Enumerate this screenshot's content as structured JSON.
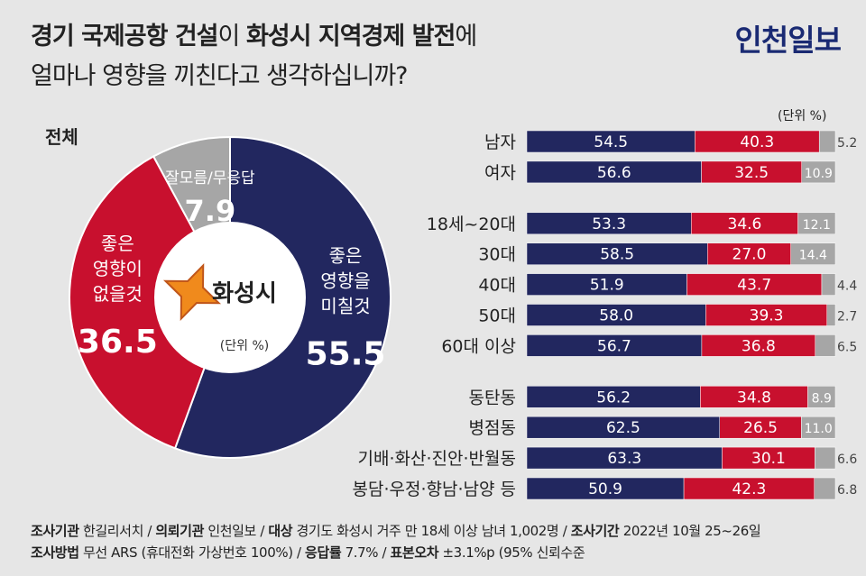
{
  "header": {
    "title_parts": [
      "경기 국제공항 건설",
      "이 ",
      "화성시 지역경제 발전",
      "에"
    ],
    "subtitle": "얼마나 영향을 끼친다고 생각하십니까?",
    "logo": "인천일보"
  },
  "unit_label": "(단위 %)",
  "pie": {
    "title": "전체",
    "center_label": "화성시",
    "center_unit": "(단위 %)",
    "slices": [
      {
        "label_lines": [
          "좋은",
          "영향을",
          "미칠것"
        ],
        "value": 55.5,
        "display": "55.5",
        "color": "#22275f"
      },
      {
        "label_lines": [
          "좋은",
          "영향이",
          "없을것"
        ],
        "value": 36.5,
        "display": "36.5",
        "color": "#c8102e"
      },
      {
        "label_lines": [
          "잘모름/무응답"
        ],
        "value": 7.9,
        "display": "7.9",
        "color": "#a6a6a6"
      }
    ]
  },
  "chart_data": {
    "type": "bar",
    "stacked": true,
    "orientation": "horizontal",
    "categories": [
      "남자",
      "여자",
      "18세~20대",
      "30대",
      "40대",
      "50대",
      "60대 이상",
      "동탄동",
      "병점동",
      "기배·화산·진안·반월동",
      "봉담·우정·향남·남양 등"
    ],
    "groups": [
      [
        0,
        1
      ],
      [
        2,
        3,
        4,
        5,
        6
      ],
      [
        7,
        8,
        9,
        10
      ]
    ],
    "series": [
      {
        "name": "좋은 영향을 미칠것",
        "color": "#22275f",
        "values": [
          54.5,
          56.6,
          53.3,
          58.5,
          51.9,
          58.0,
          56.7,
          56.2,
          62.5,
          63.3,
          50.9
        ]
      },
      {
        "name": "좋은 영향이 없을것",
        "color": "#c8102e",
        "values": [
          40.3,
          32.5,
          34.6,
          27.0,
          43.7,
          39.3,
          36.8,
          34.8,
          26.5,
          30.1,
          42.3
        ]
      },
      {
        "name": "잘모름/무응답",
        "color": "#a6a6a6",
        "values": [
          5.2,
          10.9,
          12.1,
          14.4,
          4.4,
          2.7,
          6.5,
          8.9,
          11.0,
          6.6,
          6.8
        ]
      }
    ],
    "labels": [
      [
        "54.5",
        "56.6",
        "53.3",
        "58.5",
        "51.9",
        "58.0",
        "56.7",
        "56.2",
        "62.5",
        "63.3",
        "50.9"
      ],
      [
        "40.3",
        "32.5",
        "34.6",
        "27.0",
        "43.7",
        "39.3",
        "36.8",
        "34.8",
        "26.5",
        "30.1",
        "42.3"
      ],
      [
        "5.2",
        "10.9",
        "12.1",
        "14.4",
        "4.4",
        "2.7",
        "6.5",
        "8.9",
        "11.0",
        "6.6",
        "6.8"
      ]
    ]
  },
  "footer": {
    "line1": [
      {
        "key": "조사기관",
        "value": " 한길리서치 / "
      },
      {
        "key": "의뢰기관",
        "value": " 인천일보 / "
      },
      {
        "key": "대상",
        "value": " 경기도 화성시 거주 만 18세 이상 남녀 1,002명 / "
      },
      {
        "key": "조사기간",
        "value": " 2022년 10월 25~26일"
      }
    ],
    "line2": [
      {
        "key": "조사방법",
        "value": " 무선 ARS (휴대전화 가상번호 100%) / "
      },
      {
        "key": "응답률",
        "value": " 7.7% / "
      },
      {
        "key": "표본오차",
        "value": " ±3.1%p (95% 신뢰수준"
      }
    ]
  }
}
